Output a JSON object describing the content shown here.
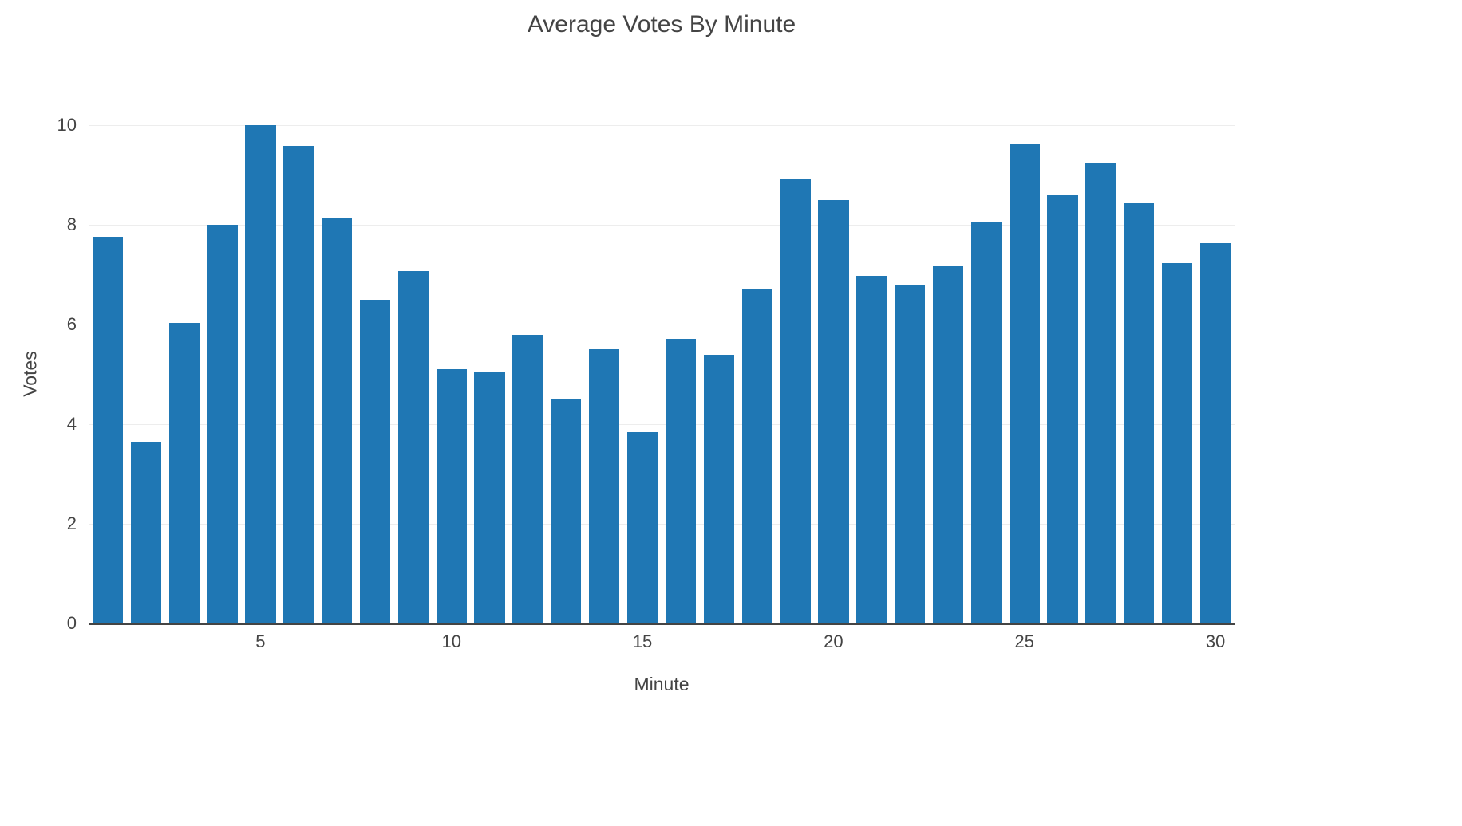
{
  "chart": {
    "title": "Average Votes By Minute",
    "xlabel": "Minute",
    "ylabel": "Votes"
  },
  "chart_data": {
    "type": "bar",
    "title": "Average Votes By Minute",
    "xlabel": "Minute",
    "ylabel": "Votes",
    "x": [
      1,
      2,
      3,
      4,
      5,
      6,
      7,
      8,
      9,
      10,
      11,
      12,
      13,
      14,
      15,
      16,
      17,
      18,
      19,
      20,
      21,
      22,
      23,
      24,
      25,
      26,
      27,
      28,
      29,
      30
    ],
    "values": [
      7.76,
      3.65,
      6.04,
      8.0,
      10.0,
      9.59,
      8.13,
      6.49,
      7.08,
      5.11,
      5.06,
      5.79,
      4.5,
      5.5,
      3.84,
      5.71,
      5.39,
      6.7,
      8.92,
      8.5,
      6.97,
      6.78,
      7.17,
      8.05,
      9.64,
      8.61,
      9.23,
      8.43,
      7.23,
      7.64
    ],
    "ylim": [
      0,
      10
    ],
    "yticks": [
      0,
      2,
      4,
      6,
      8,
      10
    ],
    "xticks": [
      5,
      10,
      15,
      20,
      25,
      30
    ],
    "bar_color": "#1f77b4",
    "grid": true,
    "legend_position": "none",
    "background_color": "#ffffff"
  }
}
